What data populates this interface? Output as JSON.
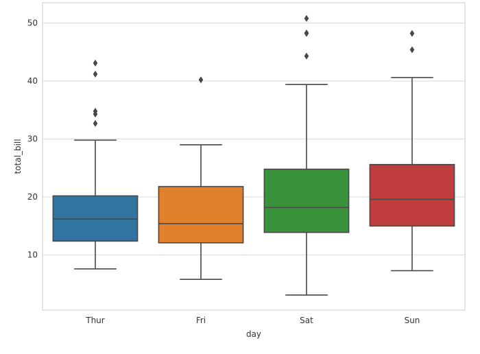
{
  "chart_data": {
    "type": "box",
    "xlabel": "day",
    "ylabel": "total_bill",
    "categories": [
      "Thur",
      "Fri",
      "Sat",
      "Sun"
    ],
    "ylim": [
      0.5,
      53.5
    ],
    "yticks": [
      10,
      20,
      30,
      40,
      50
    ],
    "grid": true,
    "series": [
      {
        "category": "Thur",
        "color": "#3274a1",
        "whisker_low": 7.6,
        "q1": 12.4,
        "median": 16.2,
        "q3": 20.2,
        "whisker_high": 29.8,
        "outliers": [
          32.7,
          34.3,
          34.8,
          41.2,
          43.1
        ]
      },
      {
        "category": "Fri",
        "color": "#e1812c",
        "whisker_low": 5.8,
        "q1": 12.1,
        "median": 15.4,
        "q3": 21.8,
        "whisker_high": 29.0,
        "outliers": [
          40.2
        ]
      },
      {
        "category": "Sat",
        "color": "#3a923a",
        "whisker_low": 3.1,
        "q1": 13.9,
        "median": 18.2,
        "q3": 24.8,
        "whisker_high": 39.4,
        "outliers": [
          44.3,
          48.2,
          48.3,
          50.8
        ]
      },
      {
        "category": "Sun",
        "color": "#c03d3e",
        "whisker_low": 7.3,
        "q1": 15.0,
        "median": 19.6,
        "q3": 25.6,
        "whisker_high": 40.6,
        "outliers": [
          45.4,
          48.2
        ]
      }
    ]
  }
}
